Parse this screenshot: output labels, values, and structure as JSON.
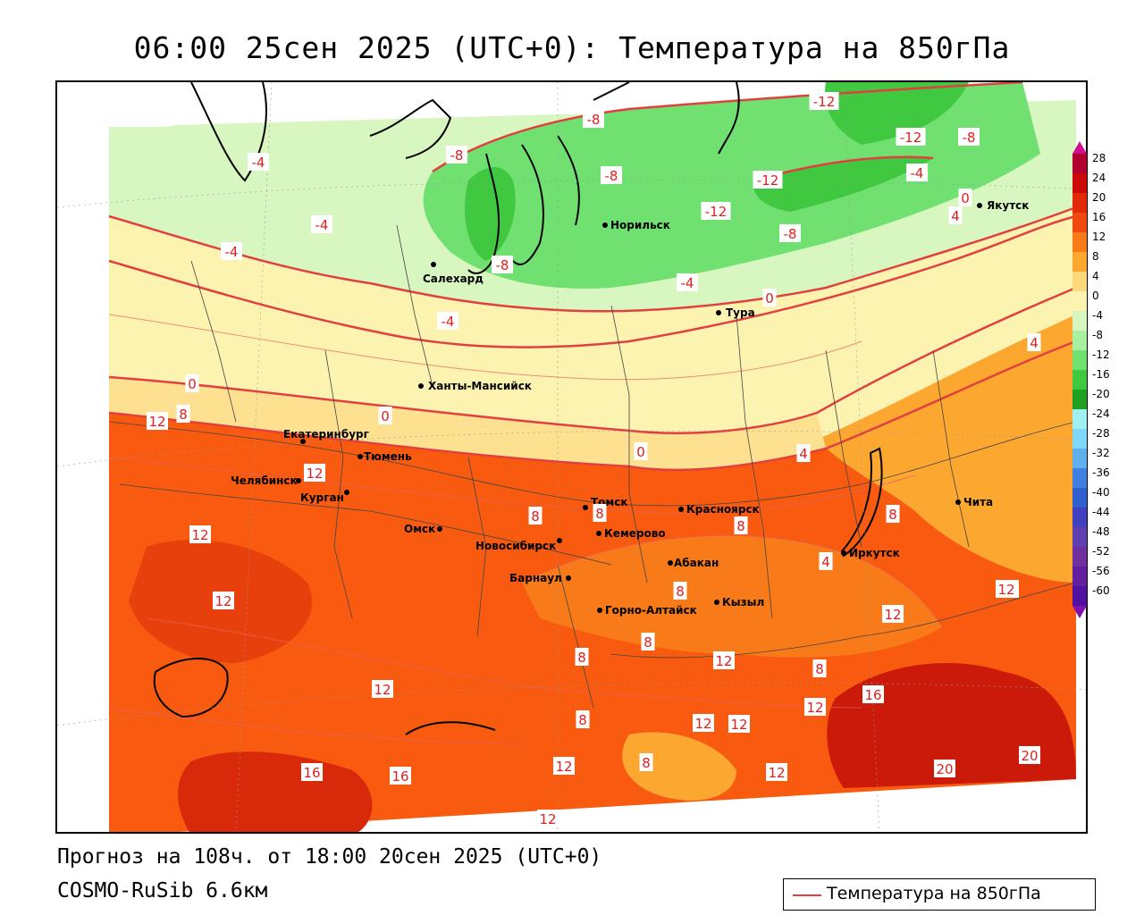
{
  "title": "06:00 25сен 2025 (UTC+0): Температура на 850гПа",
  "footer": {
    "forecast": "Прогноз на 108ч. от 18:00 20сен 2025 (UTC+0)",
    "model": "COSMO-RuSib 6.6км"
  },
  "legend": {
    "label": "Температура на 850гПа",
    "line_color": "#e04040"
  },
  "colorbar": {
    "ticks": [
      "28",
      "24",
      "20",
      "16",
      "12",
      "8",
      "4",
      "0",
      "-4",
      "-8",
      "-12",
      "-16",
      "-20",
      "-24",
      "-28",
      "-32",
      "-36",
      "-40",
      "-44",
      "-48",
      "-52",
      "-56",
      "-60"
    ],
    "colors": [
      "#b00030",
      "#cc0a0a",
      "#e02a0a",
      "#f04a10",
      "#f87a18",
      "#fca830",
      "#fdd878",
      "#fdf3b0",
      "#d8f7c0",
      "#a8f0a0",
      "#70e070",
      "#40c840",
      "#20a020",
      "#a0f0f0",
      "#80d8f8",
      "#60b0f0",
      "#4080e0",
      "#3060d0",
      "#4040c0",
      "#6040b0",
      "#7030a0",
      "#6020a0",
      "#5010a0"
    ]
  },
  "cities": [
    {
      "name": "Якутск"
    },
    {
      "name": "Норильск"
    },
    {
      "name": "Салехард"
    },
    {
      "name": "Тура"
    },
    {
      "name": "Ханты-Мансийск"
    },
    {
      "name": "Екатеринбург"
    },
    {
      "name": "Тюмень"
    },
    {
      "name": "Челябинск"
    },
    {
      "name": "Курган"
    },
    {
      "name": "Омск"
    },
    {
      "name": "Новосибирск"
    },
    {
      "name": "Томск"
    },
    {
      "name": "Красноярск"
    },
    {
      "name": "Кемерово"
    },
    {
      "name": "Абакан"
    },
    {
      "name": "Барнаул"
    },
    {
      "name": "Горно-Алтайск"
    },
    {
      "name": "Кызыл"
    },
    {
      "name": "Иркутск"
    },
    {
      "name": "Чита"
    }
  ],
  "isotherm_labels": [
    "-12",
    "-12",
    "-8",
    "-8",
    "-8",
    "-12",
    "-4",
    "-12",
    "-8",
    "0",
    "4",
    "-8",
    "-4",
    "-4",
    "-4",
    "-8",
    "-4",
    "4",
    "0",
    "-4",
    "0",
    "8",
    "0",
    "4",
    "0",
    "12",
    "8",
    "12",
    "8",
    "8",
    "12",
    "4",
    "8",
    "8",
    "8",
    "12",
    "12",
    "8",
    "12",
    "12",
    "8",
    "12",
    "12",
    "16",
    "8",
    "12",
    "12",
    "8",
    "12",
    "16",
    "16",
    "12",
    "20",
    "20",
    "12",
    "12"
  ]
}
